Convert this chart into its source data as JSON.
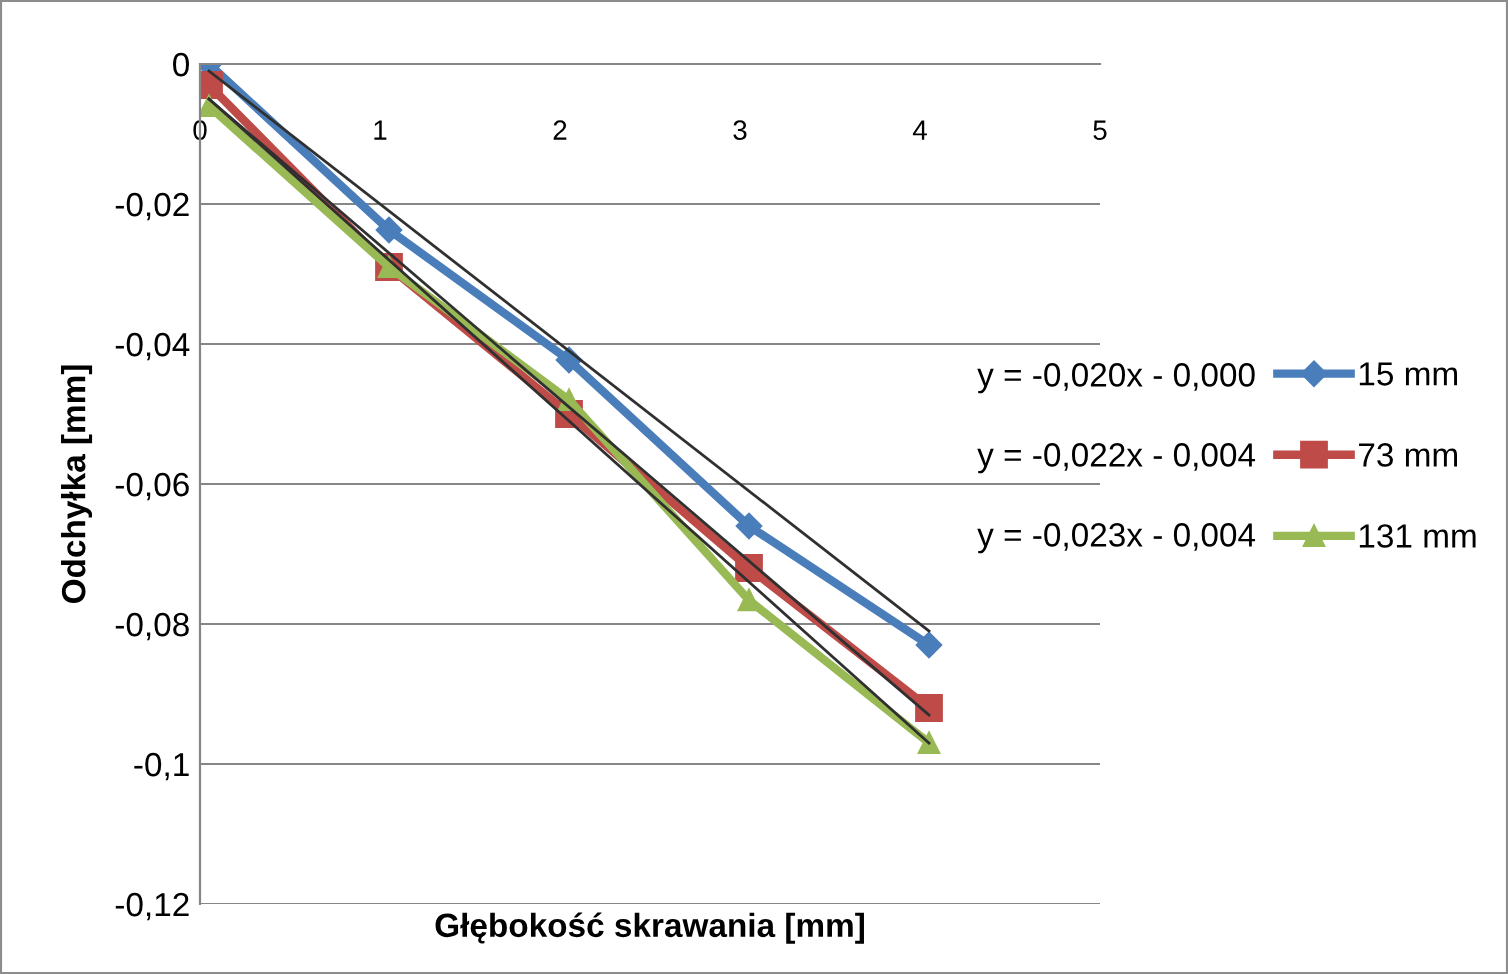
{
  "chart_data": {
    "type": "line",
    "xlabel": "Głębokość skrawania [mm]",
    "ylabel": "Odchyłka [mm]",
    "xlim": [
      0,
      5
    ],
    "xticks": [
      0,
      1,
      2,
      3,
      4,
      5
    ],
    "ylim": [
      -0.12,
      0
    ],
    "yticks": [
      {
        "value": -0.12,
        "label": "-0,12"
      },
      {
        "value": -0.1,
        "label": "-0,1"
      },
      {
        "value": -0.08,
        "label": "-0,08"
      },
      {
        "value": -0.06,
        "label": "-0,06"
      },
      {
        "value": -0.04,
        "label": "-0,04"
      },
      {
        "value": -0.02,
        "label": "-0,02"
      },
      {
        "value": 0,
        "label": "0"
      }
    ],
    "grid": "y",
    "legend": "right",
    "series": [
      {
        "name": "15 mm",
        "color": "#4a7ebb",
        "marker": "diamond",
        "x": [
          0.05,
          1.05,
          2.05,
          3.05,
          4.05
        ],
        "values": [
          0.0,
          -0.0237,
          -0.0423,
          -0.066,
          -0.083
        ]
      },
      {
        "name": "73 mm",
        "color": "#be4b48",
        "marker": "square",
        "x": [
          0.05,
          1.05,
          2.05,
          3.05,
          4.05
        ],
        "values": [
          -0.003,
          -0.029,
          -0.05,
          -0.072,
          -0.092
        ]
      },
      {
        "name": "131 mm",
        "color": "#98b954",
        "marker": "triangle",
        "x": [
          0.05,
          1.05,
          2.05,
          3.05,
          4.05
        ],
        "values": [
          -0.006,
          -0.029,
          -0.048,
          -0.0766,
          -0.097
        ]
      },
      {
        "color": "#303030",
        "marker": "none",
        "x": [
          0.05,
          4.05
        ],
        "values": [
          -0.001,
          -0.081
        ]
      },
      {
        "color": "#303030",
        "marker": "none",
        "x": [
          0.05,
          4.05
        ],
        "values": [
          -0.005,
          -0.093
        ]
      },
      {
        "color": "#303030",
        "marker": "none",
        "x": [
          0.05,
          4.05
        ],
        "values": [
          -0.005,
          -0.097
        ]
      }
    ],
    "annotations": [
      "y = -0,020x - 0,000",
      "y = -0,022x - 0,004",
      "y = -0,023x - 0,004"
    ]
  }
}
